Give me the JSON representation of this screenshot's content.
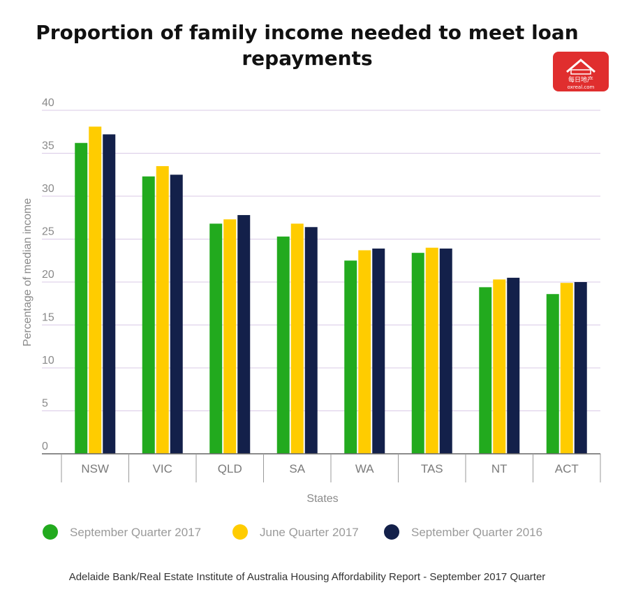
{
  "title_line1": "Proportion of family income needed to meet loan",
  "title_line2": "repayments",
  "logo": {
    "text_cn": "每日地产",
    "text_url": "oxreal.com",
    "color": "#e02e2e"
  },
  "source": "Adelaide Bank/Real Estate Institute of Australia Housing Affordability Report - September 2017 Quarter",
  "colors": {
    "gridline": "#d9c9e6",
    "axis": "#666666",
    "separator": "#9a9a9a"
  },
  "chart_data": {
    "type": "bar",
    "title": "Proportion of family income needed to meet loan repayments",
    "xlabel": "States",
    "ylabel": "Percentage of median income",
    "ylim": [
      0,
      40
    ],
    "yticks": [
      "0",
      "5",
      "10",
      "15",
      "20",
      "25",
      "30",
      "35",
      "40"
    ],
    "grid": true,
    "legend_position": "bottom",
    "categories": [
      "NSW",
      "VIC",
      "QLD",
      "SA",
      "WA",
      "TAS",
      "NT",
      "ACT"
    ],
    "series": [
      {
        "name": "September Quarter 2017",
        "color": "#22aa1e",
        "values": [
          36.2,
          32.3,
          26.8,
          25.3,
          22.5,
          23.4,
          19.4,
          18.6
        ]
      },
      {
        "name": "June Quarter 2017",
        "color": "#ffcc00",
        "values": [
          38.1,
          33.5,
          27.3,
          26.8,
          23.7,
          24.0,
          20.3,
          19.9
        ]
      },
      {
        "name": "September Quarter 2016",
        "color": "#13204a",
        "values": [
          37.2,
          32.5,
          27.8,
          26.4,
          23.9,
          23.9,
          20.5,
          20.0
        ]
      }
    ]
  }
}
